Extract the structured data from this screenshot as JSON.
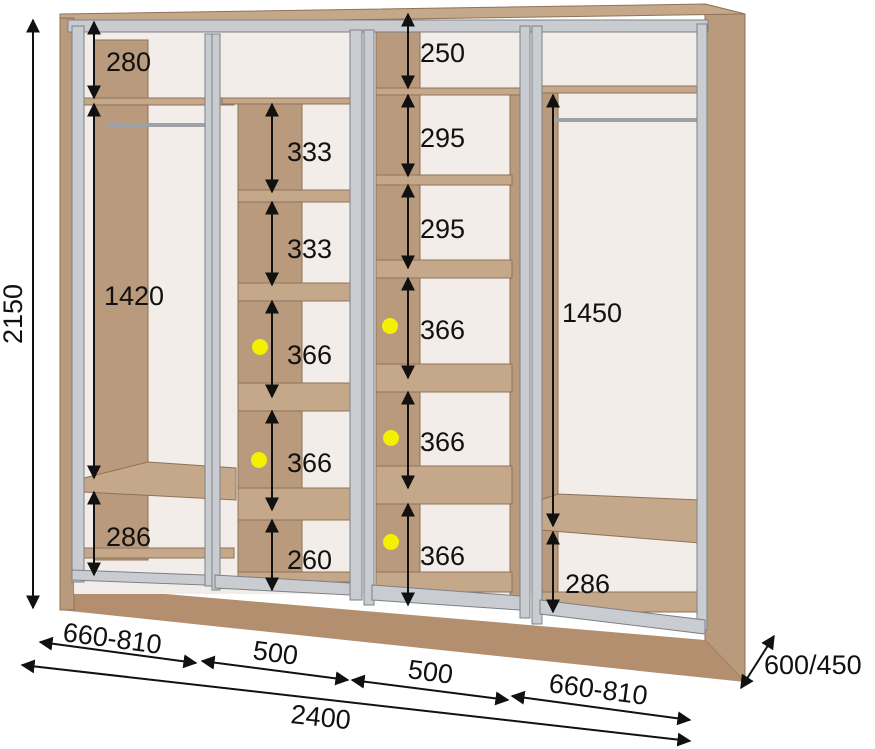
{
  "dimensions": {
    "height_total": "2150",
    "left_top": "280",
    "left_middle": "1420",
    "left_bottom": "286",
    "center_left": [
      "333",
      "333",
      "366",
      "366",
      "260"
    ],
    "center_right": [
      "250",
      "295",
      "295",
      "366",
      "366",
      "366"
    ],
    "right_middle": "1450",
    "right_bottom": "286",
    "width_left": "660-810",
    "width_center_left": "500",
    "width_center_right": "500",
    "width_right": "660-810",
    "width_total": "2400",
    "depth": "600/450"
  },
  "colors": {
    "wood": "#c5a78a",
    "frame": "#c9ccd0",
    "marker": "#f5ef00",
    "line": "#111111"
  }
}
